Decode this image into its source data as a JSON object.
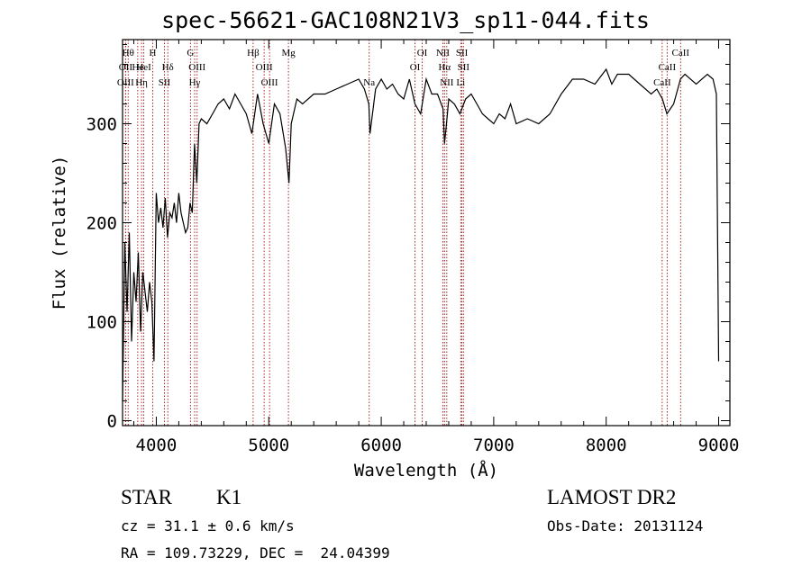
{
  "chart_data": {
    "type": "line",
    "title": "spec-56621-GAC108N21V3_sp11-044.fits",
    "xlabel": "Wavelength (Å)",
    "ylabel": "Flux (relative)",
    "xlim": [
      3700,
      9100
    ],
    "ylim": [
      -5,
      385
    ],
    "xticks": [
      4000,
      5000,
      6000,
      7000,
      8000,
      9000
    ],
    "yticks": [
      0,
      100,
      200,
      300
    ],
    "grid": false,
    "line_color": "#000000",
    "marker_color": "#a01010",
    "series": [
      {
        "x": [
          3700,
          3720,
          3740,
          3760,
          3780,
          3800,
          3820,
          3840,
          3860,
          3880,
          3900,
          3920,
          3940,
          3960,
          3980,
          4000,
          4020,
          4040,
          4060,
          4080,
          4100,
          4120,
          4140,
          4160,
          4180,
          4200,
          4220,
          4240,
          4260,
          4280,
          4300,
          4320,
          4340,
          4360,
          4380,
          4400,
          4450,
          4500,
          4550,
          4600,
          4650,
          4700,
          4750,
          4800,
          4850,
          4900,
          4950,
          5000,
          5050,
          5100,
          5150,
          5180,
          5200,
          5250,
          5300,
          5400,
          5500,
          5600,
          5700,
          5800,
          5850,
          5890,
          5900,
          5950,
          6000,
          6050,
          6100,
          6150,
          6200,
          6250,
          6300,
          6350,
          6400,
          6450,
          6500,
          6550,
          6563,
          6580,
          6600,
          6650,
          6700,
          6750,
          6800,
          6850,
          6900,
          6950,
          7000,
          7050,
          7100,
          7150,
          7200,
          7300,
          7400,
          7500,
          7600,
          7700,
          7800,
          7900,
          8000,
          8050,
          8100,
          8200,
          8300,
          8400,
          8450,
          8500,
          8540,
          8600,
          8660,
          8700,
          8800,
          8900,
          8950,
          8980,
          9000
        ],
        "values": [
          20,
          180,
          110,
          190,
          80,
          150,
          120,
          170,
          90,
          150,
          130,
          110,
          140,
          120,
          60,
          230,
          200,
          215,
          195,
          225,
          185,
          210,
          205,
          220,
          200,
          230,
          210,
          200,
          190,
          195,
          220,
          210,
          280,
          240,
          300,
          305,
          300,
          310,
          320,
          325,
          315,
          330,
          320,
          310,
          290,
          330,
          300,
          280,
          320,
          310,
          275,
          240,
          300,
          325,
          320,
          330,
          330,
          335,
          340,
          345,
          335,
          320,
          290,
          335,
          345,
          335,
          340,
          330,
          325,
          345,
          320,
          310,
          345,
          330,
          330,
          315,
          280,
          300,
          325,
          320,
          310,
          325,
          330,
          320,
          310,
          305,
          300,
          310,
          305,
          320,
          300,
          305,
          300,
          310,
          330,
          345,
          345,
          340,
          355,
          340,
          350,
          350,
          340,
          330,
          335,
          325,
          310,
          320,
          345,
          350,
          340,
          350,
          345,
          330,
          60
        ]
      }
    ],
    "line_markers": [
      {
        "x": 3750,
        "label": "Hθ",
        "row": 0
      },
      {
        "x": 3727,
        "label": "OII",
        "row": 1
      },
      {
        "x": 3727,
        "label": "OIII",
        "row": 2
      },
      {
        "x": 3835,
        "label": "He",
        "row": 1
      },
      {
        "x": 3889,
        "label": "HeI",
        "row": 1
      },
      {
        "x": 3869,
        "label": "Hη",
        "row": 2
      },
      {
        "x": 3968,
        "label": "H",
        "row": 0
      },
      {
        "x": 4102,
        "label": "Hδ",
        "row": 1
      },
      {
        "x": 4072,
        "label": "SII",
        "row": 2
      },
      {
        "x": 4304,
        "label": "G",
        "row": 0
      },
      {
        "x": 4363,
        "label": "OIII",
        "row": 1
      },
      {
        "x": 4341,
        "label": "Hγ",
        "row": 2
      },
      {
        "x": 4861,
        "label": "Hβ",
        "row": 0
      },
      {
        "x": 4959,
        "label": "OIII",
        "row": 1
      },
      {
        "x": 5007,
        "label": "OIII",
        "row": 2
      },
      {
        "x": 5175,
        "label": "Mg",
        "row": 0
      },
      {
        "x": 5893,
        "label": "Na",
        "row": 2
      },
      {
        "x": 6364,
        "label": "OI",
        "row": 0
      },
      {
        "x": 6300,
        "label": "OI",
        "row": 1
      },
      {
        "x": 6548,
        "label": "NII",
        "row": 0
      },
      {
        "x": 6563,
        "label": "Hα",
        "row": 1
      },
      {
        "x": 6583,
        "label": "NII",
        "row": 2
      },
      {
        "x": 6717,
        "label": "SII",
        "row": 0
      },
      {
        "x": 6731,
        "label": "SII",
        "row": 1
      },
      {
        "x": 6707,
        "label": "Li",
        "row": 2
      },
      {
        "x": 8662,
        "label": "CaII",
        "row": 0
      },
      {
        "x": 8542,
        "label": "CaII",
        "row": 1
      },
      {
        "x": 8498,
        "label": "CaII",
        "row": 2
      }
    ]
  },
  "info": {
    "class": "STAR",
    "subclass": "K1",
    "survey": "LAMOST DR2",
    "cz": "cz = 31.1 ± 0.6 km/s",
    "obs_date": "Obs-Date: 20131124",
    "coords": "RA = 109.73229, DEC =  24.04399"
  }
}
